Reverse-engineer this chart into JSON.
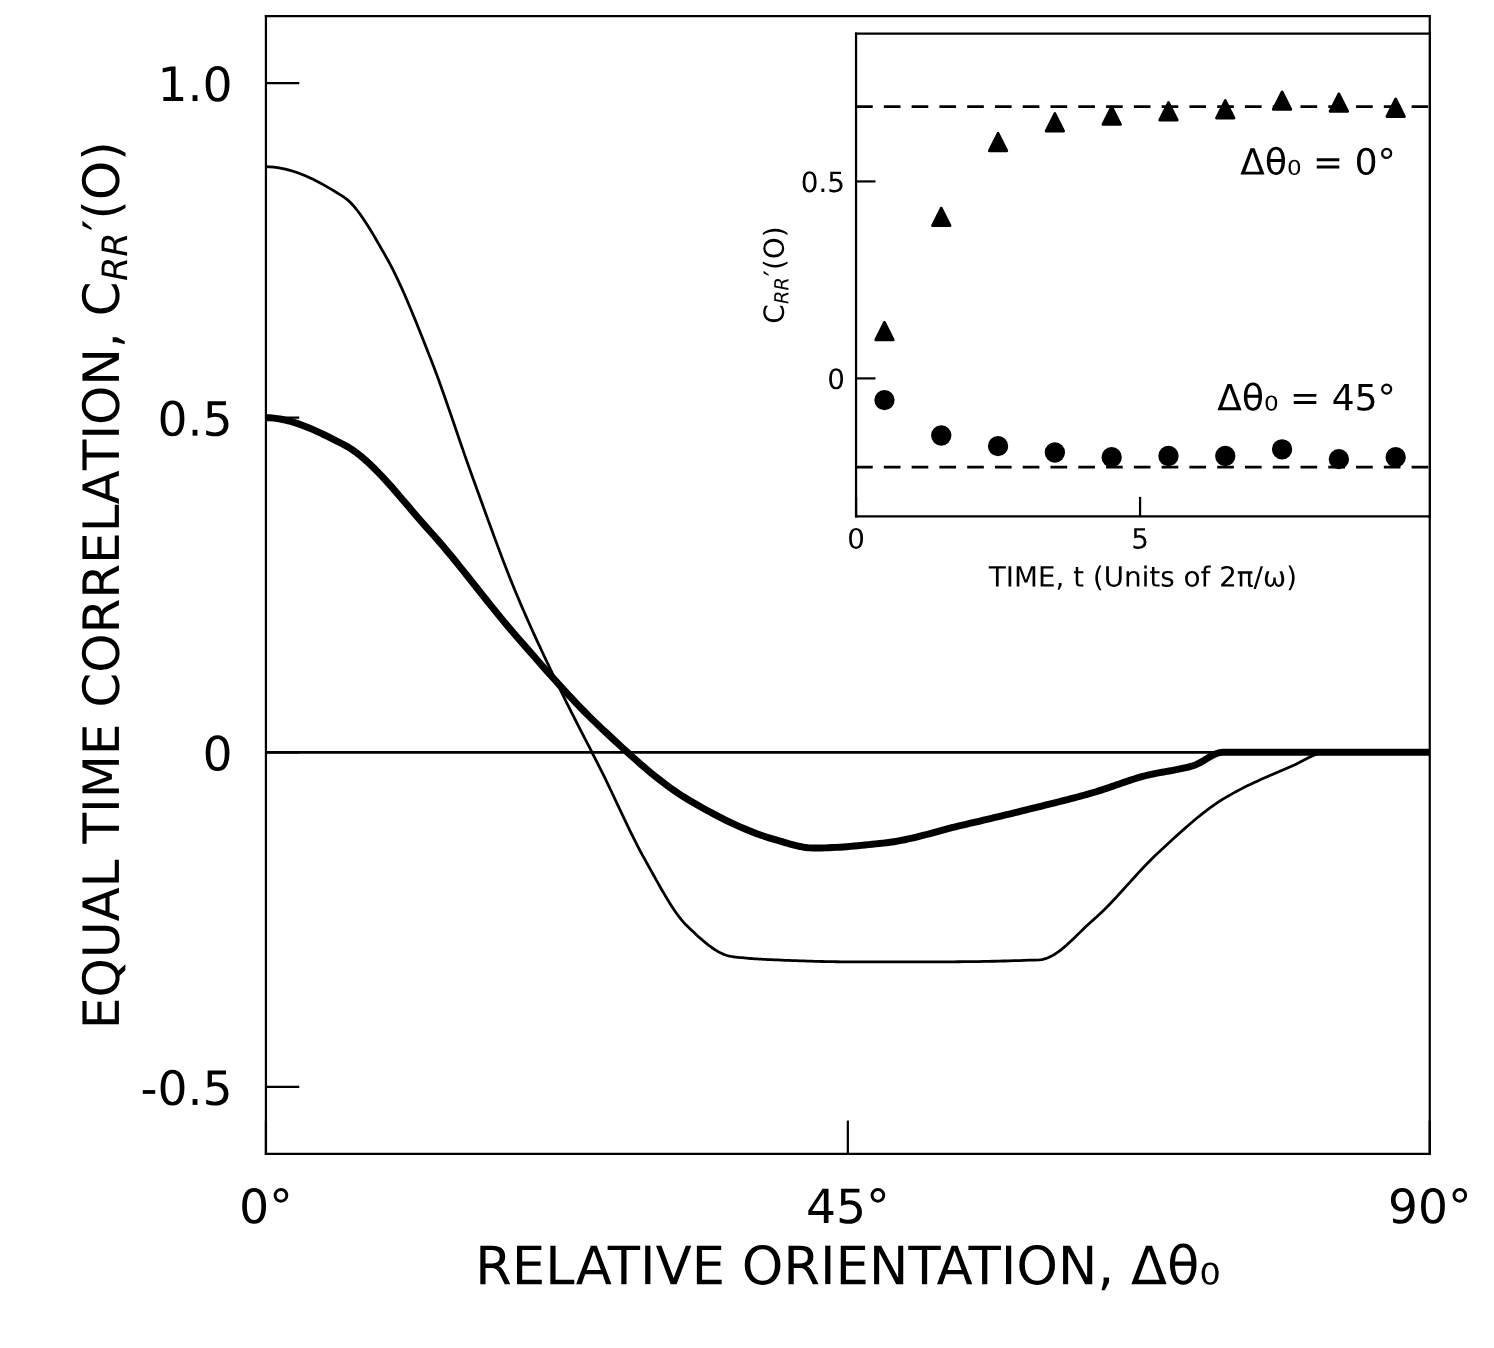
{
  "chart_data": [
    {
      "type": "line",
      "xlabel": "RELATIVE ORIENTATION, Δθ₀",
      "ylabel": "EQUAL TIME CORRELATION, C$_{RR}$′(O)",
      "xlim": [
        0,
        90
      ],
      "ylim": [
        -0.6,
        1.1
      ],
      "xticks": [
        {
          "value": 0,
          "label": "0°"
        },
        {
          "value": 45,
          "label": "45°"
        },
        {
          "value": 90,
          "label": "90°"
        }
      ],
      "yticks": [
        {
          "value": -0.5,
          "label": "-0.5"
        },
        0,
        0.5,
        {
          "value": 1,
          "label": "1.0"
        }
      ],
      "grid": false,
      "legend": false,
      "marker": "none",
      "line_style": "solid",
      "ref_lines": [
        {
          "axis": "y",
          "value": 0,
          "label": null,
          "color": "#000000",
          "line_style": "solid"
        }
      ],
      "series": [
        {
          "color": "#000000",
          "x": [
            0,
            6,
            9.3,
            12.7,
            16,
            19.3,
            22.6,
            26,
            29.3,
            32.6,
            36,
            39.3,
            45,
            52,
            59.8,
            64,
            69,
            74,
            79.4,
            82,
            90
          ],
          "values": [
            0.875,
            0.83,
            0.74,
            0.59,
            0.41,
            0.24,
            0.1,
            -0.03,
            -0.16,
            -0.26,
            -0.305,
            -0.31,
            -0.313,
            -0.313,
            -0.31,
            -0.25,
            -0.15,
            -0.07,
            -0.02,
            0,
            0
          ]
        },
        {
          "color": "#000000",
          "x": [
            0,
            6,
            12.7,
            19.3,
            26,
            32.6,
            39.3,
            42.4,
            48,
            53.6,
            59,
            64,
            68,
            71.7,
            74,
            90
          ],
          "values": [
            0.5,
            0.46,
            0.33,
            0.175,
            0.035,
            -0.07,
            -0.13,
            -0.143,
            -0.135,
            -0.11,
            -0.085,
            -0.06,
            -0.035,
            -0.02,
            0,
            0
          ]
        }
      ]
    },
    {
      "type": "scatter",
      "xlabel": "TIME, t (Units of 2π/ω)",
      "ylabel": "C$_{RR}$′(O)",
      "xlim": [
        0,
        10.1
      ],
      "ylim": [
        -0.35,
        0.875
      ],
      "xticks": [
        0,
        5
      ],
      "yticks": [
        0,
        0.5
      ],
      "grid": false,
      "legend": false,
      "ref_lines": [
        {
          "axis": "y",
          "value": 0.69,
          "label": null,
          "color": "#000000",
          "line_style": "dashed"
        },
        {
          "axis": "y",
          "value": -0.225,
          "label": null,
          "color": "#000000",
          "line_style": "dashed"
        }
      ],
      "series": [
        {
          "name": "Δθ₀ = 0°",
          "color": "#000000",
          "marker": "triangle",
          "x": [
            0.5,
            1.5,
            2.5,
            3.5,
            4.5,
            5.5,
            6.5,
            7.5,
            8.5,
            9.5
          ],
          "values": [
            0.12,
            0.41,
            0.6,
            0.65,
            0.667,
            0.678,
            0.683,
            0.705,
            0.7,
            0.687
          ]
        },
        {
          "name": "Δθ₀ = 45°",
          "color": "#000000",
          "marker": "circle",
          "x": [
            0.5,
            1.5,
            2.5,
            3.5,
            4.5,
            5.5,
            6.5,
            7.5,
            8.5,
            9.5
          ],
          "values": [
            -0.055,
            -0.145,
            -0.172,
            -0.188,
            -0.2,
            -0.197,
            -0.197,
            -0.18,
            -0.205,
            -0.2
          ]
        }
      ]
    }
  ]
}
